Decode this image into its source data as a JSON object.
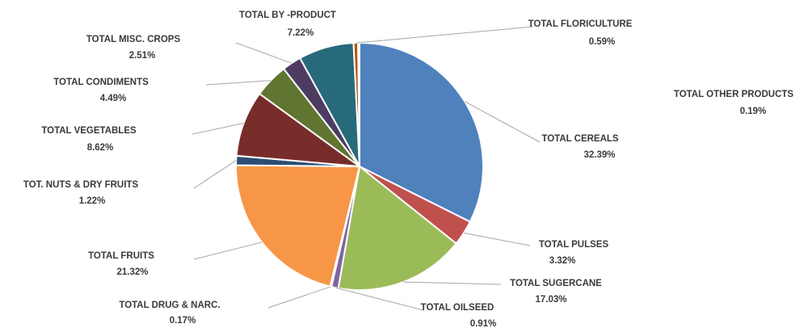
{
  "chart_data": {
    "type": "pie",
    "title": "",
    "start_angle_deg": 0,
    "direction": "clockwise",
    "slices": [
      {
        "name": "TOTAL CEREALS",
        "value": 32.39,
        "label": "32.39%",
        "color": "#4f81bd"
      },
      {
        "name": "TOTAL PULSES",
        "value": 3.32,
        "label": "3.32%",
        "color": "#c0504d"
      },
      {
        "name": "TOTAL SUGERCANE",
        "value": 17.03,
        "label": "17.03%",
        "color": "#9bbb59"
      },
      {
        "name": "TOTAL OILSEED",
        "value": 0.91,
        "label": "0.91%",
        "color": "#8064a2"
      },
      {
        "name": "TOTAL DRUG & NARC.",
        "value": 0.17,
        "label": "0.17%",
        "color": "#4bacc6"
      },
      {
        "name": "TOTAL FRUITS",
        "value": 21.32,
        "label": "21.32%",
        "color": "#f79646"
      },
      {
        "name": "TOT. NUTS & DRY FRUITS",
        "value": 1.22,
        "label": "1.22%",
        "color": "#2c4d75"
      },
      {
        "name": "TOTAL VEGETABLES",
        "value": 8.62,
        "label": "8.62%",
        "color": "#772c2a"
      },
      {
        "name": "TOTAL CONDIMENTS",
        "value": 4.49,
        "label": "4.49%",
        "color": "#5f7530"
      },
      {
        "name": "TOTAL MISC. CROPS",
        "value": 2.51,
        "label": "2.51%",
        "color": "#4d3b62"
      },
      {
        "name": "TOTAL BY -PRODUCT",
        "value": 7.22,
        "label": "7.22%",
        "color": "#276a7c"
      },
      {
        "name": "TOTAL FLORICULTURE",
        "value": 0.59,
        "label": "0.59%",
        "color": "#b65708"
      },
      {
        "name": "TOTAL OTHER PRODUCTS",
        "value": 0.19,
        "label": "0.19%",
        "color": "#729aca"
      }
    ],
    "legend": "none",
    "data_labels": "outside with leader lines"
  }
}
